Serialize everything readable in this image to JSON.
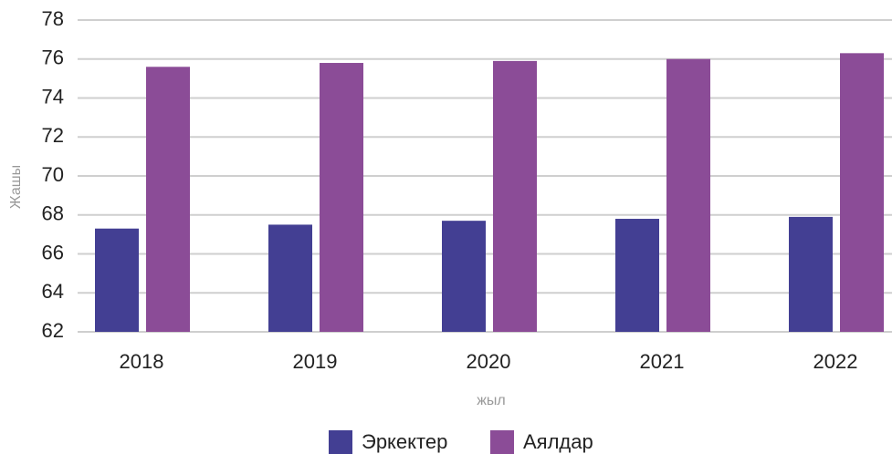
{
  "chart_data": {
    "type": "bar",
    "categories": [
      "2018",
      "2019",
      "2020",
      "2021",
      "2022"
    ],
    "series": [
      {
        "name": "Эркектер",
        "color": "#433f93",
        "values": [
          67.3,
          67.5,
          67.7,
          67.8,
          67.9
        ]
      },
      {
        "name": "Аялдар",
        "color": "#8b4c97",
        "values": [
          75.6,
          75.8,
          75.9,
          76.0,
          76.3
        ]
      }
    ],
    "x_label": "жыл",
    "y_label": "Жашы",
    "ylim": [
      62,
      78
    ],
    "yticks": [
      62,
      64,
      66,
      68,
      70,
      72,
      74,
      76,
      78
    ],
    "grid": true
  }
}
